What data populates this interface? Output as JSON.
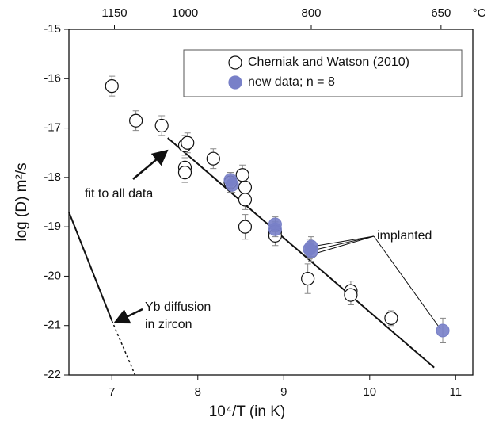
{
  "chart_data": {
    "type": "scatter",
    "x_label": "10⁴/T (in K)",
    "y_label": "log (D) m²/s",
    "xlim": [
      6.5,
      11.2
    ],
    "ylim": [
      -22,
      -15
    ],
    "xticks": [
      7,
      8,
      9,
      10,
      11
    ],
    "yticks": [
      -22,
      -21,
      -20,
      -19,
      -18,
      -17,
      -16,
      -15
    ],
    "x2ticks": [
      {
        "value": 7.03,
        "label": "1150"
      },
      {
        "value": 7.85,
        "label": "1000"
      },
      {
        "value": 9.32,
        "label": "800"
      },
      {
        "value": 10.83,
        "label": "650"
      }
    ],
    "x2_unit": "°C",
    "legend_position": "upper right",
    "series": [
      {
        "name": "Cherniak and Watson (2010)",
        "color": "#ffffff",
        "x": [
          7.0,
          7.28,
          7.58,
          7.85,
          7.88,
          7.85,
          7.85,
          8.18,
          8.38,
          8.52,
          8.55,
          8.55,
          8.55,
          8.9,
          8.9,
          9.28,
          9.32,
          9.78,
          9.78,
          10.25
        ],
        "values": [
          -16.15,
          -16.85,
          -16.95,
          -17.35,
          -17.3,
          -17.8,
          -17.9,
          -17.62,
          -18.1,
          -17.95,
          -18.2,
          -18.45,
          -19.0,
          -19.1,
          -19.18,
          -20.05,
          -19.5,
          -20.3,
          -20.38,
          -20.85
        ],
        "errors": [
          0.2,
          0.2,
          0.2,
          0.2,
          0.2,
          0.2,
          0.2,
          0.2,
          0.2,
          0.2,
          0.2,
          0.2,
          0.25,
          0.2,
          0.2,
          0.3,
          0.2,
          0.2,
          0.2,
          0.15
        ]
      },
      {
        "name": "new data; n = 8",
        "color": "#7880c8",
        "x": [
          8.38,
          8.4,
          8.9,
          8.9,
          9.32,
          9.32,
          9.3,
          10.85
        ],
        "values": [
          -18.05,
          -18.15,
          -18.95,
          -19.05,
          -19.4,
          -19.5,
          -19.45,
          -21.1
        ],
        "errors": [
          0.15,
          0.15,
          0.15,
          0.15,
          0.2,
          0.2,
          0.2,
          0.25
        ]
      }
    ],
    "fit_line": {
      "x": [
        7.65,
        10.75
      ],
      "y": [
        -17.2,
        -21.85
      ]
    },
    "yb_line": {
      "x": [
        6.5,
        7.0
      ],
      "y": [
        -18.7,
        -20.9
      ]
    },
    "yb_line_dashed": {
      "x": [
        7.0,
        7.27
      ],
      "y": [
        -20.9,
        -22
      ]
    },
    "annotations": [
      "fit to all data",
      "Yb diffusion",
      "in zircon",
      "implanted"
    ]
  }
}
